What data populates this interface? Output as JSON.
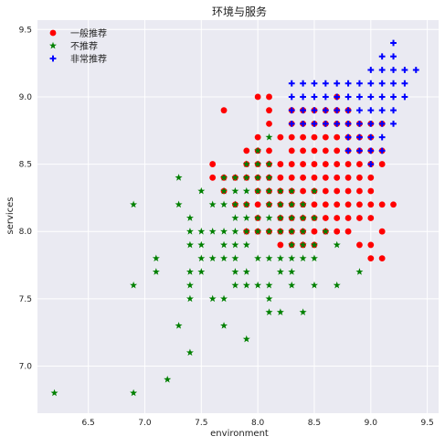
{
  "chart_data": {
    "type": "scatter",
    "title": "环境与服务",
    "xlabel": "environment",
    "ylabel": "services",
    "xlim": [
      6.05,
      9.6
    ],
    "ylim": [
      6.65,
      9.57
    ],
    "xticks": [
      6.5,
      7.0,
      7.5,
      8.0,
      8.5,
      9.0,
      9.5
    ],
    "xtick_labels": [
      "6.5",
      "7.0",
      "7.5",
      "8.0",
      "8.5",
      "9.0",
      "9.5"
    ],
    "yticks": [
      7.0,
      7.5,
      8.0,
      8.5,
      9.0,
      9.5
    ],
    "ytick_labels": [
      "7.0",
      "7.5",
      "8.0",
      "8.5",
      "9.0",
      "9.5"
    ],
    "grid": true,
    "legend_position": "top-left",
    "colors": {
      "plot_bg": "#eaeaf2",
      "grid": "#ffffff",
      "text": "#222222"
    },
    "series": [
      {
        "name": "一般推荐",
        "marker": "circle",
        "color": "#ff0000",
        "points": [
          [
            7.6,
            8.4
          ],
          [
            7.6,
            8.5
          ],
          [
            7.7,
            8.3
          ],
          [
            7.7,
            8.4
          ],
          [
            7.7,
            8.9
          ],
          [
            7.8,
            8.2
          ],
          [
            7.8,
            8.4
          ],
          [
            7.9,
            8.0
          ],
          [
            7.9,
            8.2
          ],
          [
            7.9,
            8.4
          ],
          [
            7.9,
            8.5
          ],
          [
            7.9,
            8.6
          ],
          [
            8.0,
            8.0
          ],
          [
            8.0,
            8.1
          ],
          [
            8.0,
            8.2
          ],
          [
            8.0,
            8.3
          ],
          [
            8.0,
            8.4
          ],
          [
            8.0,
            8.5
          ],
          [
            8.0,
            8.6
          ],
          [
            8.0,
            8.7
          ],
          [
            8.0,
            9.0
          ],
          [
            8.1,
            8.0
          ],
          [
            8.1,
            8.2
          ],
          [
            8.1,
            8.3
          ],
          [
            8.1,
            8.4
          ],
          [
            8.1,
            8.5
          ],
          [
            8.1,
            8.6
          ],
          [
            8.1,
            8.8
          ],
          [
            8.1,
            8.9
          ],
          [
            8.1,
            9.0
          ],
          [
            8.2,
            7.9
          ],
          [
            8.2,
            8.0
          ],
          [
            8.2,
            8.1
          ],
          [
            8.2,
            8.2
          ],
          [
            8.2,
            8.3
          ],
          [
            8.2,
            8.4
          ],
          [
            8.2,
            8.5
          ],
          [
            8.2,
            8.7
          ],
          [
            8.3,
            7.9
          ],
          [
            8.3,
            8.0
          ],
          [
            8.3,
            8.1
          ],
          [
            8.3,
            8.2
          ],
          [
            8.3,
            8.3
          ],
          [
            8.3,
            8.4
          ],
          [
            8.3,
            8.5
          ],
          [
            8.3,
            8.6
          ],
          [
            8.3,
            8.7
          ],
          [
            8.3,
            8.8
          ],
          [
            8.3,
            8.9
          ],
          [
            8.4,
            7.9
          ],
          [
            8.4,
            8.0
          ],
          [
            8.4,
            8.1
          ],
          [
            8.4,
            8.2
          ],
          [
            8.4,
            8.3
          ],
          [
            8.4,
            8.4
          ],
          [
            8.4,
            8.5
          ],
          [
            8.4,
            8.6
          ],
          [
            8.4,
            8.7
          ],
          [
            8.4,
            8.8
          ],
          [
            8.4,
            8.9
          ],
          [
            8.5,
            7.9
          ],
          [
            8.5,
            8.0
          ],
          [
            8.5,
            8.1
          ],
          [
            8.5,
            8.2
          ],
          [
            8.5,
            8.3
          ],
          [
            8.5,
            8.4
          ],
          [
            8.5,
            8.5
          ],
          [
            8.5,
            8.6
          ],
          [
            8.5,
            8.7
          ],
          [
            8.5,
            8.8
          ],
          [
            8.5,
            8.9
          ],
          [
            8.6,
            8.0
          ],
          [
            8.6,
            8.1
          ],
          [
            8.6,
            8.2
          ],
          [
            8.6,
            8.3
          ],
          [
            8.6,
            8.4
          ],
          [
            8.6,
            8.5
          ],
          [
            8.6,
            8.6
          ],
          [
            8.6,
            8.7
          ],
          [
            8.6,
            8.8
          ],
          [
            8.6,
            8.9
          ],
          [
            8.7,
            8.0
          ],
          [
            8.7,
            8.1
          ],
          [
            8.7,
            8.2
          ],
          [
            8.7,
            8.3
          ],
          [
            8.7,
            8.4
          ],
          [
            8.7,
            8.5
          ],
          [
            8.7,
            8.6
          ],
          [
            8.7,
            8.7
          ],
          [
            8.7,
            8.8
          ],
          [
            8.7,
            8.9
          ],
          [
            8.7,
            9.0
          ],
          [
            8.8,
            8.0
          ],
          [
            8.8,
            8.1
          ],
          [
            8.8,
            8.2
          ],
          [
            8.8,
            8.3
          ],
          [
            8.8,
            8.4
          ],
          [
            8.8,
            8.5
          ],
          [
            8.8,
            8.6
          ],
          [
            8.8,
            8.7
          ],
          [
            8.8,
            8.8
          ],
          [
            8.8,
            8.9
          ],
          [
            8.9,
            7.9
          ],
          [
            8.9,
            8.1
          ],
          [
            8.9,
            8.2
          ],
          [
            8.9,
            8.3
          ],
          [
            8.9,
            8.4
          ],
          [
            8.9,
            8.5
          ],
          [
            8.9,
            8.6
          ],
          [
            8.9,
            8.7
          ],
          [
            8.9,
            8.8
          ],
          [
            9.0,
            7.8
          ],
          [
            9.0,
            7.9
          ],
          [
            9.0,
            8.1
          ],
          [
            9.0,
            8.2
          ],
          [
            9.0,
            8.3
          ],
          [
            9.0,
            8.4
          ],
          [
            9.0,
            8.5
          ],
          [
            9.0,
            8.6
          ],
          [
            9.0,
            8.7
          ],
          [
            9.0,
            8.8
          ],
          [
            9.1,
            7.8
          ],
          [
            9.1,
            8.0
          ],
          [
            9.1,
            8.2
          ],
          [
            9.1,
            8.5
          ],
          [
            9.1,
            8.6
          ],
          [
            9.1,
            8.8
          ],
          [
            9.2,
            8.2
          ]
        ]
      },
      {
        "name": "不推荐",
        "marker": "star",
        "color": "#008000",
        "points": [
          [
            6.2,
            6.8
          ],
          [
            6.9,
            6.8
          ],
          [
            6.9,
            7.6
          ],
          [
            6.9,
            8.2
          ],
          [
            7.1,
            7.7
          ],
          [
            7.1,
            7.8
          ],
          [
            7.2,
            6.9
          ],
          [
            7.3,
            7.3
          ],
          [
            7.3,
            8.2
          ],
          [
            7.3,
            8.4
          ],
          [
            7.4,
            7.1
          ],
          [
            7.4,
            7.5
          ],
          [
            7.4,
            7.6
          ],
          [
            7.4,
            7.7
          ],
          [
            7.4,
            7.9
          ],
          [
            7.4,
            8.0
          ],
          [
            7.4,
            8.1
          ],
          [
            7.5,
            7.7
          ],
          [
            7.5,
            7.8
          ],
          [
            7.5,
            7.9
          ],
          [
            7.5,
            8.0
          ],
          [
            7.5,
            8.3
          ],
          [
            7.6,
            7.5
          ],
          [
            7.6,
            7.8
          ],
          [
            7.6,
            8.0
          ],
          [
            7.6,
            8.2
          ],
          [
            7.7,
            7.3
          ],
          [
            7.7,
            7.5
          ],
          [
            7.7,
            7.8
          ],
          [
            7.7,
            7.9
          ],
          [
            7.7,
            8.0
          ],
          [
            7.7,
            8.2
          ],
          [
            7.7,
            8.3
          ],
          [
            7.7,
            8.4
          ],
          [
            7.8,
            7.6
          ],
          [
            7.8,
            7.7
          ],
          [
            7.8,
            7.8
          ],
          [
            7.8,
            7.9
          ],
          [
            7.8,
            8.0
          ],
          [
            7.8,
            8.1
          ],
          [
            7.8,
            8.2
          ],
          [
            7.8,
            8.3
          ],
          [
            7.8,
            8.4
          ],
          [
            7.9,
            7.2
          ],
          [
            7.9,
            7.6
          ],
          [
            7.9,
            7.7
          ],
          [
            7.9,
            7.9
          ],
          [
            7.9,
            8.0
          ],
          [
            7.9,
            8.1
          ],
          [
            7.9,
            8.2
          ],
          [
            7.9,
            8.3
          ],
          [
            7.9,
            8.4
          ],
          [
            7.9,
            8.5
          ],
          [
            8.0,
            7.6
          ],
          [
            8.0,
            7.8
          ],
          [
            8.0,
            8.0
          ],
          [
            8.0,
            8.1
          ],
          [
            8.0,
            8.3
          ],
          [
            8.0,
            8.4
          ],
          [
            8.0,
            8.5
          ],
          [
            8.0,
            8.6
          ],
          [
            8.1,
            7.4
          ],
          [
            8.1,
            7.5
          ],
          [
            8.1,
            7.6
          ],
          [
            8.1,
            7.8
          ],
          [
            8.1,
            8.0
          ],
          [
            8.1,
            8.1
          ],
          [
            8.1,
            8.2
          ],
          [
            8.1,
            8.3
          ],
          [
            8.1,
            8.4
          ],
          [
            8.1,
            8.5
          ],
          [
            8.1,
            8.7
          ],
          [
            8.2,
            7.4
          ],
          [
            8.2,
            7.7
          ],
          [
            8.2,
            7.8
          ],
          [
            8.2,
            8.0
          ],
          [
            8.2,
            8.1
          ],
          [
            8.2,
            8.2
          ],
          [
            8.2,
            8.3
          ],
          [
            8.3,
            7.6
          ],
          [
            8.3,
            7.7
          ],
          [
            8.3,
            7.8
          ],
          [
            8.3,
            7.9
          ],
          [
            8.3,
            8.0
          ],
          [
            8.3,
            8.1
          ],
          [
            8.3,
            8.2
          ],
          [
            8.3,
            8.3
          ],
          [
            8.4,
            7.4
          ],
          [
            8.4,
            7.8
          ],
          [
            8.4,
            7.9
          ],
          [
            8.4,
            8.0
          ],
          [
            8.4,
            8.1
          ],
          [
            8.4,
            8.2
          ],
          [
            8.5,
            7.6
          ],
          [
            8.5,
            7.8
          ],
          [
            8.5,
            7.9
          ],
          [
            8.5,
            8.1
          ],
          [
            8.5,
            8.3
          ],
          [
            8.6,
            8.0
          ],
          [
            8.7,
            7.6
          ],
          [
            8.7,
            7.9
          ],
          [
            8.9,
            7.7
          ]
        ]
      },
      {
        "name": "非常推荐",
        "marker": "plus",
        "color": "#0000ff",
        "points": [
          [
            8.3,
            8.8
          ],
          [
            8.3,
            8.9
          ],
          [
            8.3,
            9.0
          ],
          [
            8.3,
            9.1
          ],
          [
            8.4,
            8.8
          ],
          [
            8.4,
            8.9
          ],
          [
            8.4,
            9.0
          ],
          [
            8.4,
            9.1
          ],
          [
            8.5,
            8.8
          ],
          [
            8.5,
            8.9
          ],
          [
            8.5,
            9.0
          ],
          [
            8.5,
            9.1
          ],
          [
            8.6,
            8.8
          ],
          [
            8.6,
            8.9
          ],
          [
            8.6,
            9.0
          ],
          [
            8.6,
            9.1
          ],
          [
            8.7,
            8.8
          ],
          [
            8.7,
            8.9
          ],
          [
            8.7,
            9.0
          ],
          [
            8.7,
            9.1
          ],
          [
            8.8,
            8.6
          ],
          [
            8.8,
            8.7
          ],
          [
            8.8,
            8.8
          ],
          [
            8.8,
            8.9
          ],
          [
            8.8,
            9.0
          ],
          [
            8.8,
            9.1
          ],
          [
            8.9,
            8.6
          ],
          [
            8.9,
            8.7
          ],
          [
            8.9,
            8.8
          ],
          [
            8.9,
            8.9
          ],
          [
            8.9,
            9.0
          ],
          [
            8.9,
            9.1
          ],
          [
            9.0,
            8.5
          ],
          [
            9.0,
            8.6
          ],
          [
            9.0,
            8.7
          ],
          [
            9.0,
            8.8
          ],
          [
            9.0,
            8.9
          ],
          [
            9.0,
            9.0
          ],
          [
            9.0,
            9.1
          ],
          [
            9.0,
            9.2
          ],
          [
            9.1,
            8.6
          ],
          [
            9.1,
            8.7
          ],
          [
            9.1,
            8.8
          ],
          [
            9.1,
            8.9
          ],
          [
            9.1,
            9.0
          ],
          [
            9.1,
            9.1
          ],
          [
            9.1,
            9.2
          ],
          [
            9.1,
            9.3
          ],
          [
            9.2,
            8.8
          ],
          [
            9.2,
            8.9
          ],
          [
            9.2,
            9.0
          ],
          [
            9.2,
            9.1
          ],
          [
            9.2,
            9.2
          ],
          [
            9.2,
            9.3
          ],
          [
            9.2,
            9.4
          ],
          [
            9.3,
            9.0
          ],
          [
            9.3,
            9.1
          ],
          [
            9.3,
            9.2
          ],
          [
            9.4,
            9.2
          ]
        ]
      }
    ]
  }
}
